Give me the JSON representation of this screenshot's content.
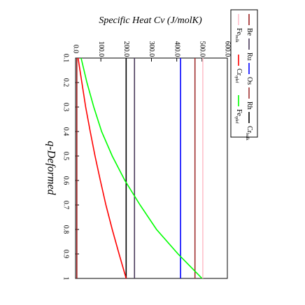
{
  "chart_data": {
    "type": "line",
    "y_label": "Specific Heat Cv (J/molK)",
    "x_label": "q-Deformed",
    "x": [
      0.1,
      0.2,
      0.3,
      0.4,
      0.5,
      0.6,
      0.7,
      0.8,
      0.9,
      1
    ],
    "xlim": [
      0.1,
      1
    ],
    "xticks": [
      0.1,
      0.2,
      0.3,
      0.4,
      0.5,
      0.6,
      0.7,
      0.8,
      0.9,
      1
    ],
    "ylim": [
      0,
      600
    ],
    "yticks": [
      {
        "value": 0,
        "label": "0.0"
      },
      {
        "value": 100,
        "label": "100.0"
      },
      {
        "value": 200,
        "label": "200.0"
      },
      {
        "value": 300,
        "label": "300.0"
      },
      {
        "value": 400,
        "label": "400.0"
      },
      {
        "value": 500,
        "label": "500.0"
      },
      {
        "value": 600,
        "label": "600.0"
      }
    ],
    "series": [
      {
        "name": "Be",
        "color": "#9b2020",
        "values": [
          5,
          5,
          5,
          5,
          5,
          5,
          5,
          5,
          5,
          5
        ]
      },
      {
        "name": "Ru",
        "color": "#4a3a5a",
        "values": [
          233,
          233,
          233,
          233,
          233,
          233,
          233,
          233,
          233,
          233
        ]
      },
      {
        "name": "Os",
        "color": "#0000ff",
        "values": [
          415,
          415,
          415,
          415,
          415,
          415,
          415,
          415,
          415,
          415
        ]
      },
      {
        "name": "Rh",
        "color": "#a03030",
        "values": [
          472,
          472,
          472,
          472,
          472,
          472,
          472,
          472,
          472,
          472
        ]
      },
      {
        "name": "Cr",
        "sub": "bulk",
        "color": "#000000",
        "values": [
          200,
          200,
          200,
          200,
          200,
          200,
          200,
          200,
          200,
          200
        ]
      },
      {
        "name": "Fe",
        "sub": "bulk",
        "color": "#ffc0cb",
        "values": [
          503,
          503,
          503,
          503,
          503,
          503,
          503,
          503,
          503,
          503
        ]
      },
      {
        "name": "Cr",
        "sub": "qdef",
        "color": "#ff0000",
        "values": [
          10,
          25,
          40,
          58,
          77,
          98,
          120,
          145,
          172,
          200
        ]
      },
      {
        "name": "Fe",
        "sub": "qdef",
        "color": "#00ff00",
        "values": [
          22,
          45,
          72,
          103,
          145,
          195,
          255,
          320,
          405,
          500
        ]
      }
    ]
  }
}
